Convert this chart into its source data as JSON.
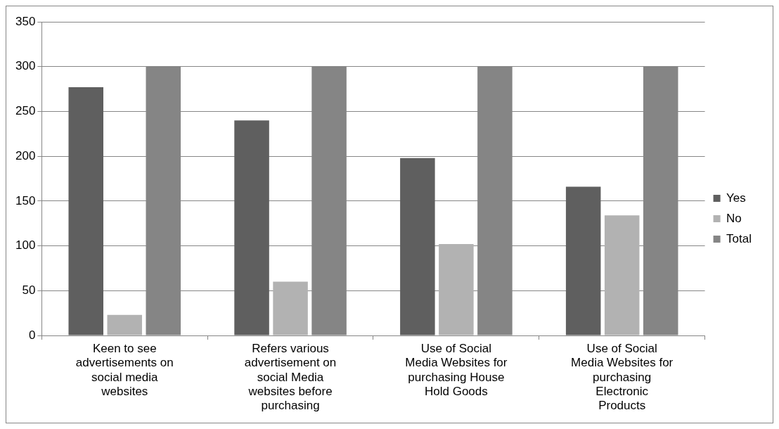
{
  "chart_data": {
    "type": "bar",
    "categories": [
      "Keen to see advertisements on social media websites",
      "Refers various advertisement on social Media websites before purchasing",
      "Use of Social Media Websites for purchasing House Hold Goods",
      "Use of Social Media Websites for purchasing Electronic Products"
    ],
    "series": [
      {
        "name": "Yes",
        "color": "#5f5f5f",
        "values": [
          277,
          240,
          198,
          166
        ]
      },
      {
        "name": "No",
        "color": "#b2b2b2",
        "values": [
          23,
          60,
          102,
          134
        ]
      },
      {
        "name": "Total",
        "color": "#858585",
        "values": [
          300,
          300,
          300,
          300
        ]
      }
    ],
    "ylim": [
      0,
      350
    ],
    "yticks": [
      0,
      50,
      100,
      150,
      200,
      250,
      300,
      350
    ],
    "grid": "y",
    "legend": "right"
  }
}
